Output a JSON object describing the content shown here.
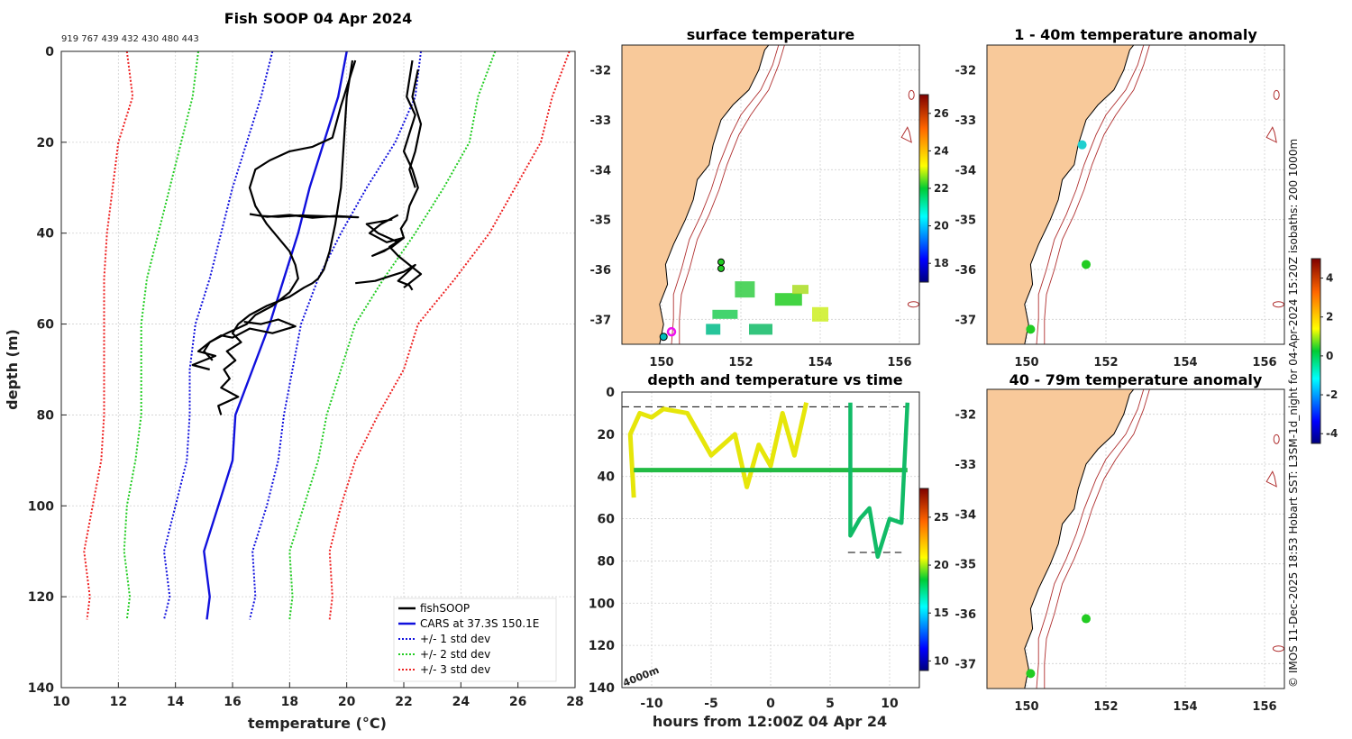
{
  "chart_data": [
    {
      "type": "line",
      "title": "Fish SOOP 04 Apr 2024",
      "top_note": "919 767 439 432 430 480 443",
      "xlabel": "temperature (°C)",
      "ylabel": "depth (m)",
      "xlim": [
        10,
        28
      ],
      "ylim": [
        0,
        140
      ],
      "xticks": [
        "10",
        "12",
        "14",
        "16",
        "18",
        "20",
        "22",
        "24",
        "26",
        "28"
      ],
      "yticks": [
        "0",
        "20",
        "40",
        "60",
        "80",
        "100",
        "120",
        "140"
      ],
      "legend": [
        "fishSOOP",
        "CARS at 37.3S 150.1E",
        "+/- 1 std dev",
        "+/- 2 std dev",
        "+/- 3 std dev"
      ],
      "series": [
        {
          "name": "CARS at 37.3S 150.1E",
          "color": "#1010dd",
          "depth": [
            0,
            10,
            20,
            30,
            40,
            50,
            60,
            70,
            80,
            90,
            100,
            110,
            120,
            125
          ],
          "temp": [
            20.0,
            19.7,
            19.2,
            18.7,
            18.3,
            17.8,
            17.3,
            16.7,
            16.1,
            16.0,
            15.5,
            15.0,
            15.2,
            15.1
          ]
        },
        {
          "name": "+1 std dev",
          "color": "#1010dd",
          "depth": [
            0,
            10,
            20,
            30,
            40,
            50,
            60,
            70,
            80,
            90,
            100,
            110,
            120,
            125
          ],
          "temp": [
            22.6,
            22.4,
            21.7,
            20.7,
            19.8,
            19.0,
            18.4,
            18.1,
            17.8,
            17.6,
            17.2,
            16.7,
            16.8,
            16.6
          ]
        },
        {
          "name": "-1 std dev",
          "color": "#1010dd",
          "depth": [
            0,
            10,
            20,
            30,
            40,
            50,
            60,
            70,
            80,
            90,
            100,
            110,
            120,
            125
          ],
          "temp": [
            17.4,
            17.0,
            16.5,
            16.0,
            15.6,
            15.2,
            14.7,
            14.5,
            14.5,
            14.4,
            14.0,
            13.6,
            13.8,
            13.6
          ]
        },
        {
          "name": "+2 std dev",
          "color": "#22cc22",
          "depth": [
            0,
            10,
            20,
            30,
            40,
            50,
            60,
            70,
            80,
            90,
            100,
            110,
            120,
            125
          ],
          "temp": [
            25.2,
            24.6,
            24.3,
            23.4,
            22.4,
            21.3,
            20.3,
            19.8,
            19.3,
            19.0,
            18.5,
            18.0,
            18.1,
            18.0
          ]
        },
        {
          "name": "-2 std dev",
          "color": "#22cc22",
          "depth": [
            0,
            10,
            20,
            30,
            40,
            50,
            60,
            70,
            80,
            90,
            100,
            110,
            120,
            125
          ],
          "temp": [
            14.8,
            14.6,
            14.2,
            13.8,
            13.4,
            13.0,
            12.8,
            12.8,
            12.8,
            12.6,
            12.3,
            12.2,
            12.4,
            12.3
          ]
        },
        {
          "name": "+3 std dev",
          "color": "#ee2222",
          "depth": [
            0,
            10,
            20,
            30,
            40,
            50,
            60,
            70,
            80,
            90,
            100,
            110,
            120,
            125
          ],
          "temp": [
            27.8,
            27.2,
            26.8,
            25.9,
            25.0,
            23.8,
            22.5,
            22.0,
            21.1,
            20.3,
            19.8,
            19.4,
            19.5,
            19.4
          ]
        },
        {
          "name": "-3 std dev",
          "color": "#ee2222",
          "depth": [
            0,
            10,
            20,
            30,
            40,
            50,
            60,
            70,
            80,
            90,
            100,
            110,
            120,
            125
          ],
          "temp": [
            12.3,
            12.5,
            12.0,
            11.8,
            11.6,
            11.5,
            11.5,
            11.5,
            11.5,
            11.4,
            11.1,
            10.8,
            11.0,
            10.9
          ]
        }
      ],
      "profiles": [
        {
          "name": "fishSOOP-a",
          "temp": [
            20.2,
            20.0,
            19.9,
            19.8,
            19.6,
            19.4,
            19.2,
            19.0,
            18.8,
            18.5,
            18.0,
            17.2,
            16.6,
            16.2,
            16.0,
            16.3,
            15.8,
            16.1,
            15.7,
            15.9,
            15.6,
            16.2,
            15.5,
            15.6
          ],
          "depth": [
            2,
            10,
            20,
            30,
            38,
            44,
            48,
            50,
            51,
            52,
            54,
            56,
            58,
            60,
            62,
            64,
            66,
            68,
            70,
            72,
            74,
            76,
            78,
            80
          ]
        },
        {
          "name": "fishSOOP-b",
          "temp": [
            20.3,
            19.8,
            19.5,
            18.8,
            18.0,
            17.3,
            16.8,
            16.6,
            16.8,
            17.2,
            17.6,
            18.0,
            18.2,
            18.3,
            18.0,
            17.4,
            16.8,
            16.5,
            15.8,
            15.2,
            15.0,
            15.3
          ],
          "depth": [
            2,
            12,
            19,
            21,
            22,
            24,
            26,
            30,
            34,
            38,
            41,
            44,
            47,
            50,
            53,
            56,
            58,
            60,
            62,
            64,
            66,
            68
          ]
        },
        {
          "name": "fishSOOP-c",
          "temp": [
            16.6,
            17.2,
            18.0,
            18.8,
            19.6,
            20.4,
            19.4,
            18.4,
            17.6,
            17.0
          ],
          "depth": [
            35.8,
            36.4,
            36.0,
            36.6,
            36.2,
            36.5,
            36.3,
            36.1,
            36.4,
            36.2
          ]
        },
        {
          "name": "fishSOOP-d",
          "temp": [
            16.4,
            17.0,
            17.6,
            18.2,
            17.4,
            16.6,
            16.0,
            15.6,
            15.2,
            14.8,
            15.4,
            15.0,
            14.6,
            15.2
          ],
          "depth": [
            59.5,
            60.0,
            59.0,
            60.5,
            62.0,
            61.0,
            63.0,
            62.5,
            64.0,
            66.0,
            67.0,
            68.0,
            69.0,
            70.0
          ]
        },
        {
          "name": "fishSOOP-e",
          "temp": [
            22.3,
            22.1,
            22.4,
            22.2,
            22.0,
            22.3,
            22.5,
            22.2,
            22.1,
            21.9,
            22.0,
            21.5,
            21.8,
            22.2,
            22.6,
            22.0
          ],
          "depth": [
            2,
            10,
            14,
            18,
            22,
            26,
            30,
            34,
            37,
            39,
            41,
            43,
            45,
            47,
            49,
            52
          ]
        },
        {
          "name": "fishSOOP-f",
          "temp": [
            22.5,
            22.3,
            22.6,
            22.4,
            22.2,
            22.4
          ],
          "depth": [
            4,
            10,
            16,
            22,
            26,
            30
          ]
        },
        {
          "name": "fishSOOP-g",
          "temp": [
            21.8,
            21.2,
            20.8,
            21.4,
            22.0,
            21.6,
            20.9,
            21.3,
            21.8,
            21.1,
            20.7,
            21.6
          ],
          "depth": [
            36,
            38,
            40,
            42,
            41,
            43,
            45,
            44,
            42,
            40,
            38,
            37
          ]
        },
        {
          "name": "fishSOOP-h",
          "temp": [
            20.3,
            21.0,
            21.5,
            22.0,
            22.4,
            21.8,
            22.2,
            22.3
          ],
          "depth": [
            51,
            50.5,
            49.5,
            48.5,
            47,
            50.5,
            51.5,
            52.5
          ]
        }
      ]
    },
    {
      "type": "heatmap",
      "title": "surface temperature",
      "xticks": [
        "150",
        "152",
        "154",
        "156"
      ],
      "yticks": [
        "-32",
        "-33",
        "-34",
        "-35",
        "-36",
        "-37"
      ],
      "lon_range": [
        149.0,
        156.5
      ],
      "lat_range": [
        -37.5,
        -31.5
      ],
      "colorbar_ticks": [
        "18",
        "20",
        "22",
        "24",
        "26"
      ],
      "colorbar_range": [
        17,
        27
      ]
    },
    {
      "type": "heatmap",
      "title": "1 - 40m temperature anomaly",
      "xticks": [
        "150",
        "152",
        "154",
        "156"
      ],
      "yticks": [
        "-32",
        "-33",
        "-34",
        "-35",
        "-36",
        "-37"
      ],
      "points": [
        {
          "lon": 151.4,
          "lat": -33.5,
          "value": -1.0
        },
        {
          "lon": 151.5,
          "lat": -35.9,
          "value": 0.3
        },
        {
          "lon": 150.1,
          "lat": -37.2,
          "value": 0.4
        }
      ]
    },
    {
      "type": "heatmap",
      "title": "40 - 79m temperature anomaly",
      "xticks": [
        "150",
        "152",
        "154",
        "156"
      ],
      "yticks": [
        "-32",
        "-33",
        "-34",
        "-35",
        "-36",
        "-37"
      ],
      "points": [
        {
          "lon": 151.5,
          "lat": -36.1,
          "value": 0.3
        },
        {
          "lon": 150.1,
          "lat": -37.2,
          "value": 0.4
        }
      ],
      "colorbar_ticks": [
        "-4",
        "-2",
        "0",
        "2",
        "4"
      ],
      "colorbar_range": [
        -4.5,
        5
      ]
    },
    {
      "type": "scatter",
      "title": "depth and temperature vs time",
      "xlabel": "hours from 12:00Z 04 Apr 24",
      "xlim": [
        -12.5,
        12.5
      ],
      "ylim": [
        0,
        140
      ],
      "xticks": [
        "-10",
        "-5",
        "0",
        "5",
        "10"
      ],
      "yticks": [
        "0",
        "20",
        "40",
        "60",
        "80",
        "100",
        "120",
        "140"
      ],
      "annotation": "4000m",
      "colorbar_ticks": [
        "10",
        "15",
        "20",
        "25"
      ],
      "colorbar_range": [
        9,
        28
      ]
    }
  ],
  "credit": "© IMOS 11-Dec-2025 18:53 Hobart SST: L3SM-1d_night for 04-Apr-2024 15:20Z isobaths: 200  1000m"
}
